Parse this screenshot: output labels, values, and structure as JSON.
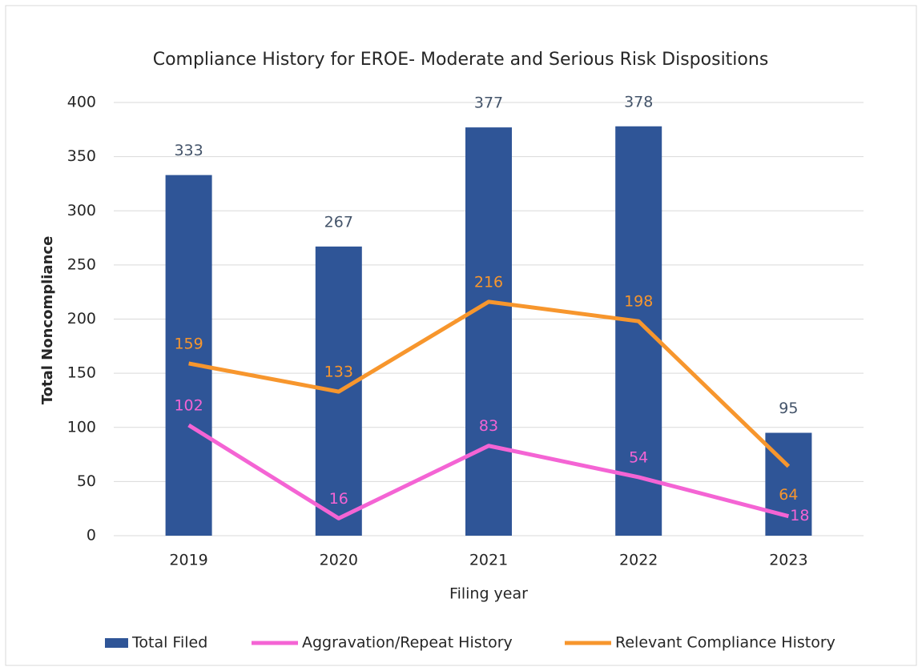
{
  "chart_data": {
    "type": "combo",
    "title": "Compliance History for EROE- Moderate and Serious Risk Dispositions",
    "x_label": "Filing year",
    "y_label": "Total Noncompliance",
    "categories": [
      "2019",
      "2020",
      "2021",
      "2022",
      "2023"
    ],
    "series": [
      {
        "name": "Total Filed",
        "type": "bar",
        "color": "#2f5597",
        "values": [
          333,
          267,
          377,
          378,
          95
        ]
      },
      {
        "name": "Aggravation/Repeat History",
        "type": "line",
        "color": "#f464d4",
        "values": [
          102,
          16,
          83,
          54,
          18
        ]
      },
      {
        "name": "Relevant Compliance History",
        "type": "line",
        "color": "#f7962d",
        "values": [
          159,
          133,
          216,
          198,
          64
        ]
      }
    ],
    "ylim": [
      0,
      400
    ],
    "yticks": [
      0,
      50,
      100,
      150,
      200,
      250,
      300,
      350,
      400
    ],
    "grid": true,
    "legend": "bottom"
  }
}
